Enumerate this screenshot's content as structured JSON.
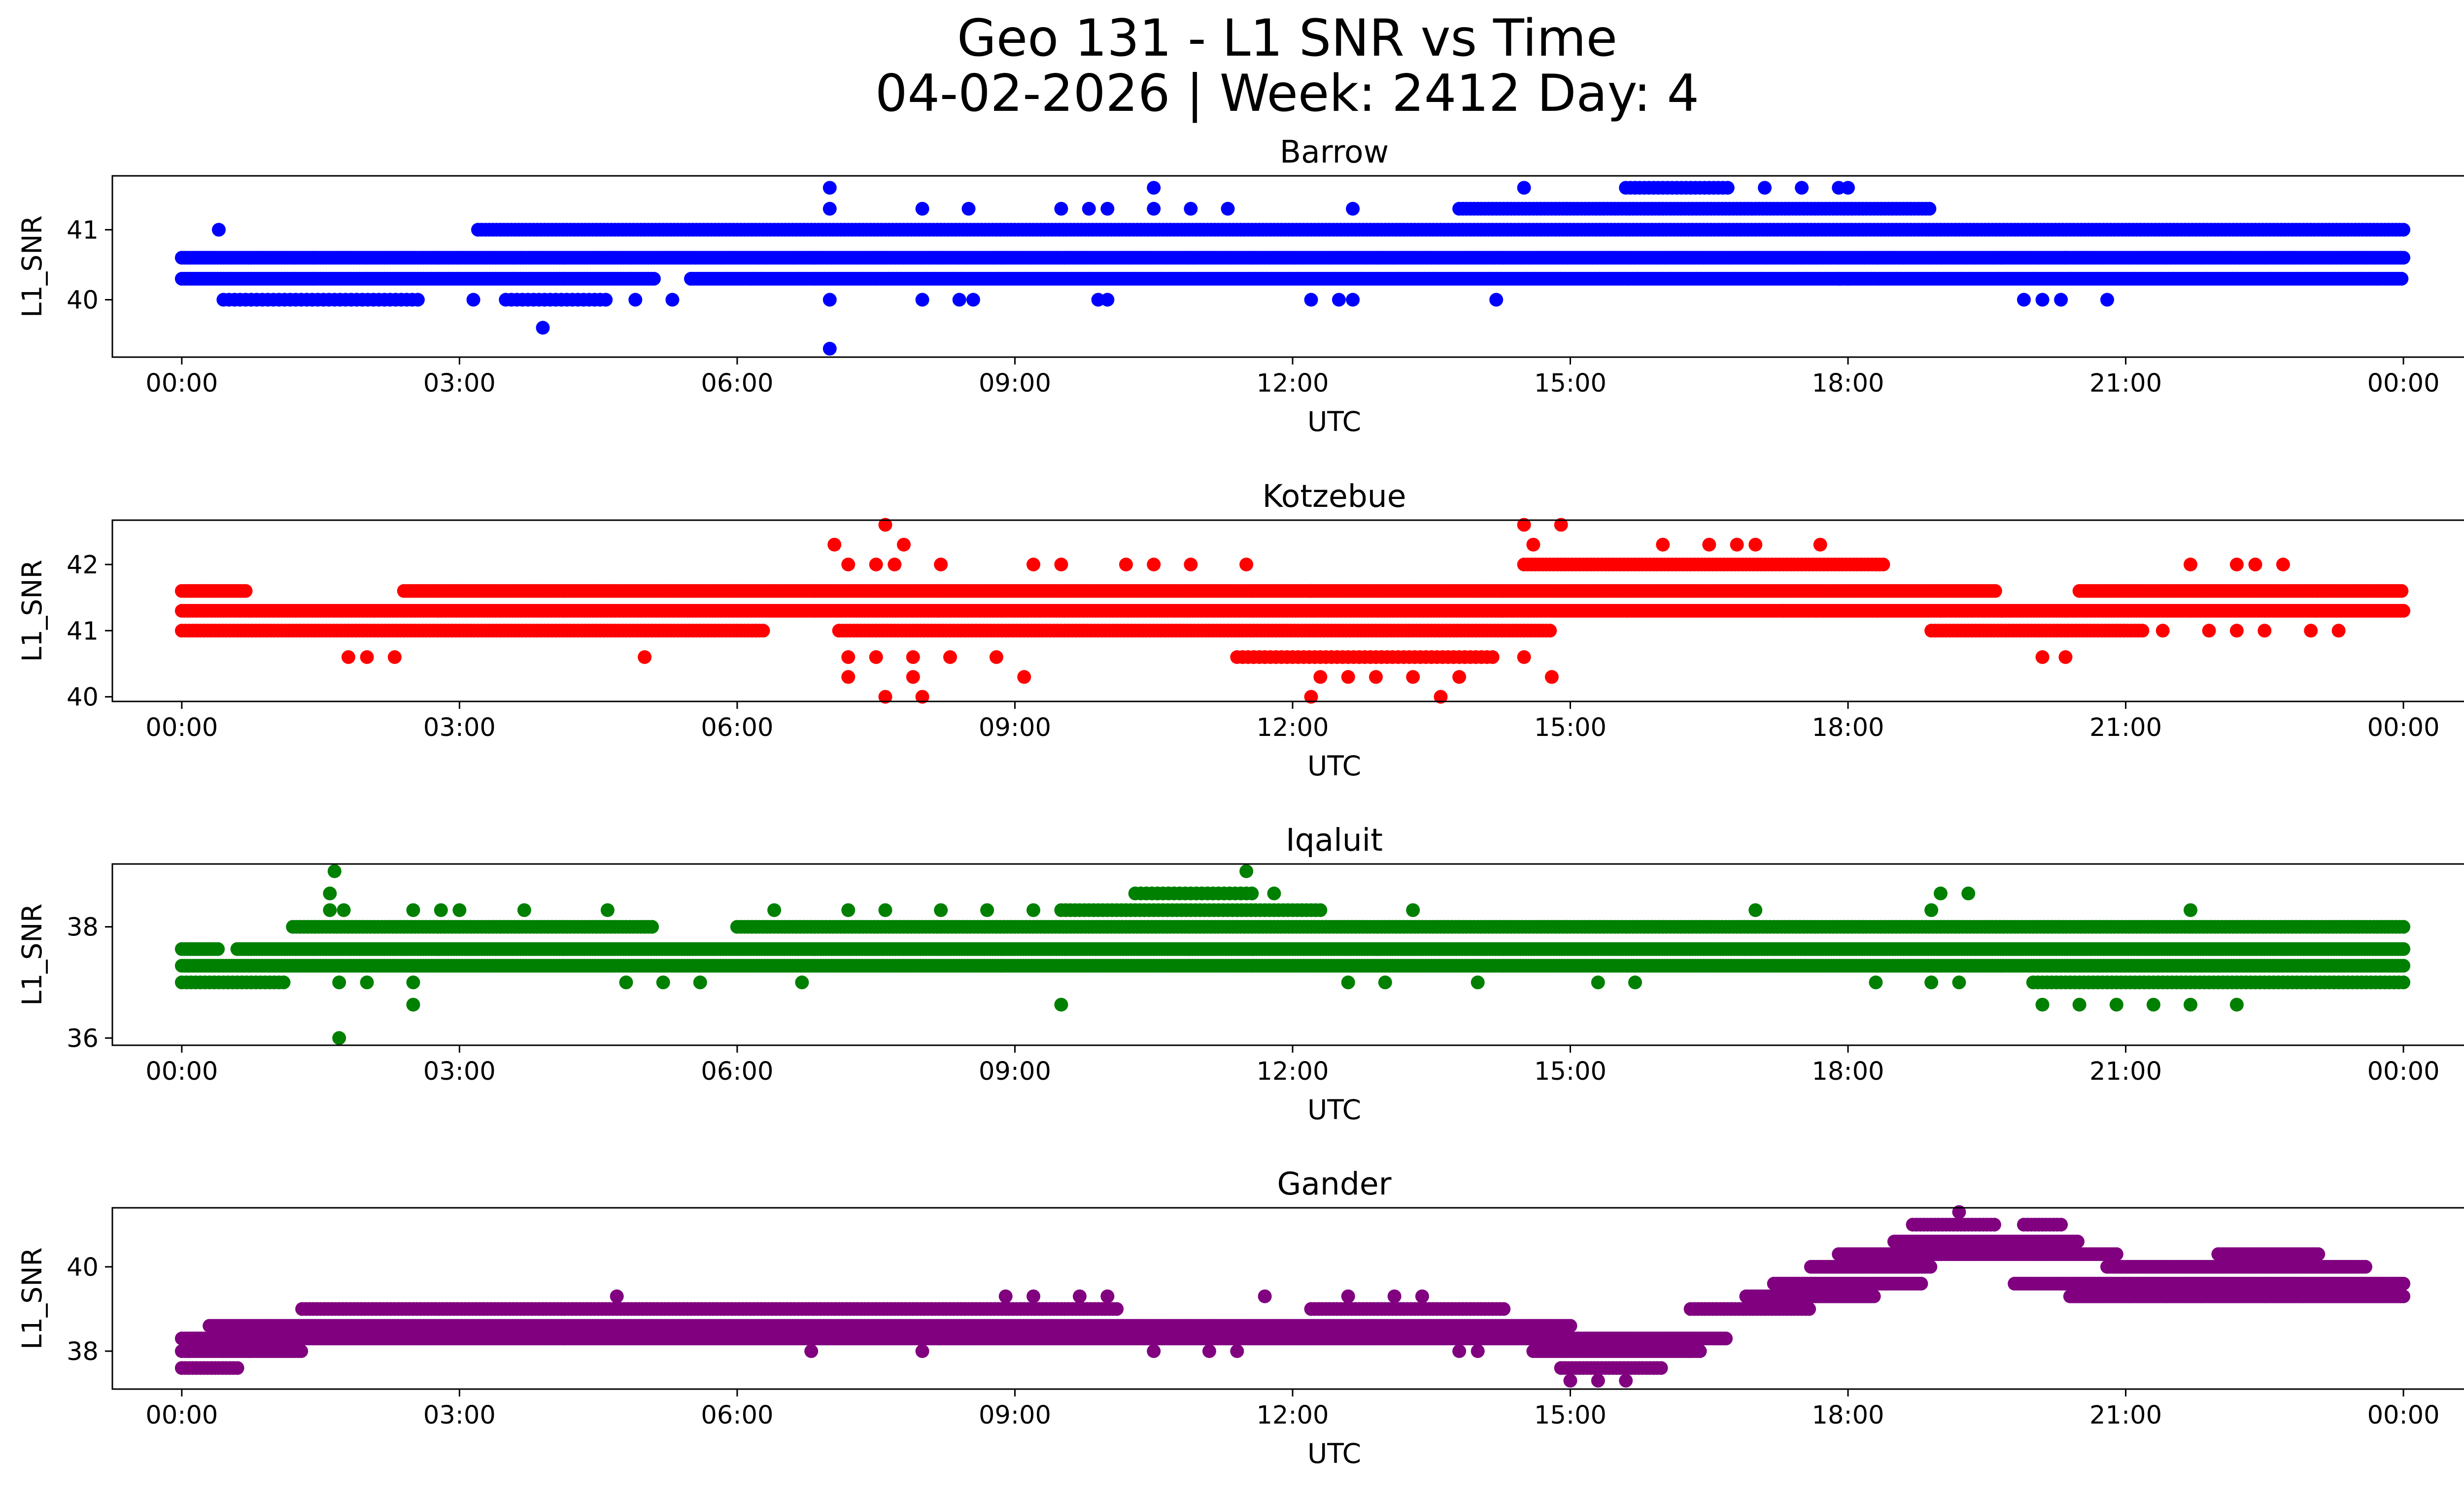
{
  "figure": {
    "title_line1": "Geo 131 - L1 SNR vs Time",
    "title_line2": "04-02-2026 | Week: 2412 Day: 4"
  },
  "chart_data": [
    {
      "type": "scatter",
      "title": "Barrow",
      "xlabel": "UTC",
      "ylabel": "L1_SNR",
      "color": "#0000ff",
      "xlim": [
        -0.75,
        25.65
      ],
      "ylim": [
        39.18,
        41.77
      ],
      "xticks": [
        "00:00",
        "03:00",
        "06:00",
        "09:00",
        "12:00",
        "15:00",
        "18:00",
        "21:00",
        "00:00"
      ],
      "yticks": [
        {
          "value": 40,
          "label": "40"
        },
        {
          "value": 41,
          "label": "41"
        }
      ],
      "levels": [
        {
          "y": 40.3,
          "segments": [
            [
              0,
              5.1
            ],
            [
              5.5,
              24
            ]
          ],
          "step": 0.03
        },
        {
          "y": 40.6,
          "segments": [
            [
              0,
              24
            ]
          ],
          "step": 0.03
        },
        {
          "y": 41.0,
          "segments": [
            [
              3.2,
              24
            ]
          ],
          "step": 0.04
        },
        {
          "y": 40.0,
          "segments": [
            [
              0.45,
              2.6
            ],
            [
              3.5,
              4.6
            ]
          ],
          "step": 0.06
        },
        {
          "y": 41.3,
          "segments": [
            [
              13.8,
              18.9
            ]
          ],
          "step": 0.04
        },
        {
          "y": 41.6,
          "segments": [
            [
              15.6,
              16.7
            ]
          ],
          "step": 0.05
        }
      ],
      "extra_points": [
        {
          "x": 0.4,
          "y": 41.0
        },
        {
          "x": 3.15,
          "y": 40.0
        },
        {
          "x": 3.9,
          "y": 39.6
        },
        {
          "x": 4.9,
          "y": 40.0
        },
        {
          "x": 5.3,
          "y": 40.0
        },
        {
          "x": 7.0,
          "y": 41.6
        },
        {
          "x": 7.0,
          "y": 41.3
        },
        {
          "x": 7.0,
          "y": 40.0
        },
        {
          "x": 7.0,
          "y": 39.3
        },
        {
          "x": 8.0,
          "y": 41.3
        },
        {
          "x": 8.5,
          "y": 41.3
        },
        {
          "x": 8.0,
          "y": 40.0
        },
        {
          "x": 8.4,
          "y": 40.0
        },
        {
          "x": 8.55,
          "y": 40.0
        },
        {
          "x": 9.5,
          "y": 41.3
        },
        {
          "x": 9.8,
          "y": 41.3
        },
        {
          "x": 10.0,
          "y": 41.3
        },
        {
          "x": 10.5,
          "y": 41.6
        },
        {
          "x": 10.5,
          "y": 41.3
        },
        {
          "x": 10.9,
          "y": 41.3
        },
        {
          "x": 11.3,
          "y": 41.3
        },
        {
          "x": 9.9,
          "y": 40.0
        },
        {
          "x": 10.0,
          "y": 40.0
        },
        {
          "x": 12.2,
          "y": 40.0
        },
        {
          "x": 12.5,
          "y": 40.0
        },
        {
          "x": 12.65,
          "y": 40.0
        },
        {
          "x": 12.65,
          "y": 41.3
        },
        {
          "x": 14.2,
          "y": 40.0
        },
        {
          "x": 14.5,
          "y": 41.6
        },
        {
          "x": 17.1,
          "y": 41.6
        },
        {
          "x": 17.5,
          "y": 41.6
        },
        {
          "x": 17.9,
          "y": 41.6
        },
        {
          "x": 18.0,
          "y": 41.6
        },
        {
          "x": 17.9,
          "y": 40.3
        },
        {
          "x": 18.0,
          "y": 40.3
        },
        {
          "x": 19.9,
          "y": 40.0
        },
        {
          "x": 20.1,
          "y": 40.0
        },
        {
          "x": 20.3,
          "y": 40.0
        },
        {
          "x": 20.8,
          "y": 40.0
        }
      ]
    },
    {
      "type": "scatter",
      "title": "Kotzebue",
      "xlabel": "UTC",
      "ylabel": "L1_SNR",
      "color": "#ff0000",
      "xlim": [
        -0.75,
        25.65
      ],
      "ylim": [
        39.93,
        42.67
      ],
      "xticks": [
        "00:00",
        "03:00",
        "06:00",
        "09:00",
        "12:00",
        "15:00",
        "18:00",
        "21:00",
        "00:00"
      ],
      "yticks": [
        {
          "value": 40,
          "label": "40"
        },
        {
          "value": 41,
          "label": "41"
        },
        {
          "value": 42,
          "label": "42"
        }
      ],
      "levels": [
        {
          "y": 41.3,
          "segments": [
            [
              0,
              24
            ]
          ],
          "step": 0.03
        },
        {
          "y": 41.6,
          "segments": [
            [
              0,
              0.7
            ],
            [
              2.4,
              19.6
            ],
            [
              20.5,
              24
            ]
          ],
          "step": 0.03
        },
        {
          "y": 41.0,
          "segments": [
            [
              0,
              6.3
            ],
            [
              7.1,
              14.8
            ],
            [
              18.9,
              21.2
            ]
          ],
          "step": 0.04
        },
        {
          "y": 42.0,
          "segments": [
            [
              14.5,
              18.4
            ]
          ],
          "step": 0.04
        },
        {
          "y": 40.6,
          "segments": [
            [
              11.4,
              14.2
            ]
          ],
          "step": 0.06
        }
      ],
      "extra_points": [
        {
          "x": 1.8,
          "y": 40.6
        },
        {
          "x": 2.0,
          "y": 40.6
        },
        {
          "x": 2.3,
          "y": 40.6
        },
        {
          "x": 5.0,
          "y": 40.6
        },
        {
          "x": 6.2,
          "y": 41.0
        },
        {
          "x": 7.05,
          "y": 42.3
        },
        {
          "x": 7.2,
          "y": 42.0
        },
        {
          "x": 7.5,
          "y": 42.0
        },
        {
          "x": 7.6,
          "y": 42.6
        },
        {
          "x": 7.8,
          "y": 42.3
        },
        {
          "x": 7.7,
          "y": 42.0
        },
        {
          "x": 8.2,
          "y": 42.0
        },
        {
          "x": 7.2,
          "y": 40.6
        },
        {
          "x": 7.2,
          "y": 40.3
        },
        {
          "x": 7.5,
          "y": 40.6
        },
        {
          "x": 7.6,
          "y": 40.0
        },
        {
          "x": 7.9,
          "y": 40.6
        },
        {
          "x": 7.9,
          "y": 40.3
        },
        {
          "x": 8.0,
          "y": 40.0
        },
        {
          "x": 8.3,
          "y": 40.6
        },
        {
          "x": 8.8,
          "y": 40.6
        },
        {
          "x": 9.1,
          "y": 40.3
        },
        {
          "x": 9.2,
          "y": 42.0
        },
        {
          "x": 9.5,
          "y": 42.0
        },
        {
          "x": 10.2,
          "y": 42.0
        },
        {
          "x": 10.5,
          "y": 42.0
        },
        {
          "x": 10.9,
          "y": 42.0
        },
        {
          "x": 11.5,
          "y": 42.0
        },
        {
          "x": 12.2,
          "y": 41.6
        },
        {
          "x": 12.2,
          "y": 40.0
        },
        {
          "x": 12.3,
          "y": 40.3
        },
        {
          "x": 12.6,
          "y": 40.3
        },
        {
          "x": 12.9,
          "y": 40.3
        },
        {
          "x": 13.3,
          "y": 40.3
        },
        {
          "x": 13.6,
          "y": 40.0
        },
        {
          "x": 13.8,
          "y": 40.3
        },
        {
          "x": 14.5,
          "y": 42.6
        },
        {
          "x": 14.6,
          "y": 42.3
        },
        {
          "x": 14.8,
          "y": 40.3
        },
        {
          "x": 14.9,
          "y": 42.6
        },
        {
          "x": 14.5,
          "y": 40.6
        },
        {
          "x": 16.0,
          "y": 42.3
        },
        {
          "x": 16.5,
          "y": 42.3
        },
        {
          "x": 16.8,
          "y": 42.3
        },
        {
          "x": 17.0,
          "y": 42.3
        },
        {
          "x": 17.7,
          "y": 42.3
        },
        {
          "x": 20.1,
          "y": 40.6
        },
        {
          "x": 20.35,
          "y": 40.6
        },
        {
          "x": 21.7,
          "y": 42.0
        },
        {
          "x": 22.2,
          "y": 42.0
        },
        {
          "x": 22.4,
          "y": 42.0
        },
        {
          "x": 22.7,
          "y": 42.0
        },
        {
          "x": 21.4,
          "y": 41.0
        },
        {
          "x": 21.9,
          "y": 41.0
        },
        {
          "x": 22.2,
          "y": 41.0
        },
        {
          "x": 22.5,
          "y": 41.0
        },
        {
          "x": 23.0,
          "y": 41.0
        },
        {
          "x": 23.3,
          "y": 41.0
        },
        {
          "x": 17.3,
          "y": 41.3
        }
      ]
    },
    {
      "type": "scatter",
      "title": "Iqaluit",
      "xlabel": "UTC",
      "ylabel": "L1_SNR",
      "color": "#008000",
      "xlim": [
        -0.75,
        25.65
      ],
      "ylim": [
        35.87,
        39.13
      ],
      "xticks": [
        "00:00",
        "03:00",
        "06:00",
        "09:00",
        "12:00",
        "15:00",
        "18:00",
        "21:00",
        "00:00"
      ],
      "yticks": [
        {
          "value": 36,
          "label": "36"
        },
        {
          "value": 38,
          "label": "38"
        }
      ],
      "levels": [
        {
          "y": 37.3,
          "segments": [
            [
              0,
              24
            ]
          ],
          "step": 0.03
        },
        {
          "y": 37.6,
          "segments": [
            [
              0,
              0.4
            ],
            [
              0.6,
              24
            ]
          ],
          "step": 0.03
        },
        {
          "y": 38.0,
          "segments": [
            [
              1.2,
              5.1
            ],
            [
              6.0,
              24
            ]
          ],
          "step": 0.04
        },
        {
          "y": 37.0,
          "segments": [
            [
              0,
              1.1
            ],
            [
              20.0,
              24
            ]
          ],
          "step": 0.05
        },
        {
          "y": 38.3,
          "segments": [
            [
              9.5,
              12.3
            ]
          ],
          "step": 0.05
        },
        {
          "y": 38.6,
          "segments": [
            [
              10.3,
              11.6
            ]
          ],
          "step": 0.06
        }
      ],
      "extra_points": [
        {
          "x": 1.65,
          "y": 39.0
        },
        {
          "x": 1.6,
          "y": 38.6
        },
        {
          "x": 1.6,
          "y": 38.3
        },
        {
          "x": 1.75,
          "y": 38.3
        },
        {
          "x": 1.7,
          "y": 37.0
        },
        {
          "x": 1.7,
          "y": 36.0
        },
        {
          "x": 2.0,
          "y": 37.0
        },
        {
          "x": 2.5,
          "y": 38.3
        },
        {
          "x": 2.5,
          "y": 37.0
        },
        {
          "x": 2.5,
          "y": 36.6
        },
        {
          "x": 2.8,
          "y": 38.3
        },
        {
          "x": 3.0,
          "y": 38.3
        },
        {
          "x": 3.7,
          "y": 38.3
        },
        {
          "x": 4.6,
          "y": 38.3
        },
        {
          "x": 4.8,
          "y": 37.0
        },
        {
          "x": 5.2,
          "y": 37.0
        },
        {
          "x": 5.6,
          "y": 37.0
        },
        {
          "x": 6.4,
          "y": 38.3
        },
        {
          "x": 6.7,
          "y": 37.0
        },
        {
          "x": 7.2,
          "y": 38.3
        },
        {
          "x": 7.6,
          "y": 38.3
        },
        {
          "x": 8.2,
          "y": 38.3
        },
        {
          "x": 8.7,
          "y": 38.3
        },
        {
          "x": 9.2,
          "y": 38.3
        },
        {
          "x": 9.5,
          "y": 36.6
        },
        {
          "x": 11.5,
          "y": 39.0
        },
        {
          "x": 11.8,
          "y": 38.6
        },
        {
          "x": 13.3,
          "y": 38.3
        },
        {
          "x": 12.6,
          "y": 37.0
        },
        {
          "x": 13.0,
          "y": 37.0
        },
        {
          "x": 14.0,
          "y": 37.0
        },
        {
          "x": 15.3,
          "y": 37.0
        },
        {
          "x": 15.7,
          "y": 37.0
        },
        {
          "x": 17.0,
          "y": 38.3
        },
        {
          "x": 19.0,
          "y": 38.6
        },
        {
          "x": 19.3,
          "y": 38.6
        },
        {
          "x": 18.9,
          "y": 38.3
        },
        {
          "x": 18.3,
          "y": 37.0
        },
        {
          "x": 18.9,
          "y": 37.0
        },
        {
          "x": 19.2,
          "y": 37.0
        },
        {
          "x": 20.1,
          "y": 36.6
        },
        {
          "x": 20.5,
          "y": 36.6
        },
        {
          "x": 20.9,
          "y": 36.6
        },
        {
          "x": 21.3,
          "y": 36.6
        },
        {
          "x": 21.7,
          "y": 36.6
        },
        {
          "x": 22.2,
          "y": 36.6
        },
        {
          "x": 21.7,
          "y": 38.3
        }
      ]
    },
    {
      "type": "scatter",
      "title": "Gander",
      "xlabel": "UTC",
      "ylabel": "L1_SNR",
      "color": "#800080",
      "xlim": [
        -0.75,
        25.65
      ],
      "ylim": [
        37.1,
        41.4
      ],
      "xticks": [
        "00:00",
        "03:00",
        "06:00",
        "09:00",
        "12:00",
        "15:00",
        "18:00",
        "21:00",
        "00:00"
      ],
      "yticks": [
        {
          "value": 38,
          "label": "38"
        },
        {
          "value": 40,
          "label": "40"
        }
      ],
      "levels": [
        {
          "y": 37.6,
          "segments": [
            [
              0,
              0.6
            ],
            [
              14.9,
              16.0
            ]
          ],
          "step": 0.04
        },
        {
          "y": 38.0,
          "segments": [
            [
              0,
              1.3
            ],
            [
              14.6,
              16.4
            ]
          ],
          "step": 0.03
        },
        {
          "y": 38.3,
          "segments": [
            [
              0,
              16.7
            ]
          ],
          "step": 0.03
        },
        {
          "y": 38.6,
          "segments": [
            [
              0.3,
              15.0
            ]
          ],
          "step": 0.03
        },
        {
          "y": 39.0,
          "segments": [
            [
              1.3,
              10.1
            ],
            [
              12.2,
              14.3
            ],
            [
              16.3,
              17.6
            ]
          ],
          "step": 0.04
        },
        {
          "y": 39.3,
          "segments": [
            [
              16.9,
              18.3
            ],
            [
              20.4,
              24
            ]
          ],
          "step": 0.03
        },
        {
          "y": 39.6,
          "segments": [
            [
              17.2,
              18.8
            ],
            [
              19.8,
              24
            ]
          ],
          "step": 0.03
        },
        {
          "y": 40.0,
          "segments": [
            [
              17.6,
              18.9
            ],
            [
              20.8,
              23.6
            ]
          ],
          "step": 0.03
        },
        {
          "y": 40.3,
          "segments": [
            [
              17.9,
              20.9
            ],
            [
              22.0,
              23.1
            ]
          ],
          "step": 0.03
        },
        {
          "y": 40.6,
          "segments": [
            [
              18.5,
              20.5
            ]
          ],
          "step": 0.03
        },
        {
          "y": 41.0,
          "segments": [
            [
              18.7,
              19.6
            ],
            [
              19.9,
              20.3
            ]
          ],
          "step": 0.04
        }
      ],
      "extra_points": [
        {
          "x": 4.7,
          "y": 39.3
        },
        {
          "x": 8.9,
          "y": 39.3
        },
        {
          "x": 9.2,
          "y": 39.3
        },
        {
          "x": 9.7,
          "y": 39.3
        },
        {
          "x": 10.0,
          "y": 39.3
        },
        {
          "x": 11.7,
          "y": 39.3
        },
        {
          "x": 12.6,
          "y": 39.3
        },
        {
          "x": 13.1,
          "y": 39.3
        },
        {
          "x": 13.4,
          "y": 39.3
        },
        {
          "x": 11.1,
          "y": 38.0
        },
        {
          "x": 11.4,
          "y": 38.0
        },
        {
          "x": 13.8,
          "y": 38.0
        },
        {
          "x": 14.0,
          "y": 38.0
        },
        {
          "x": 15.0,
          "y": 37.3
        },
        {
          "x": 15.3,
          "y": 37.3
        },
        {
          "x": 15.6,
          "y": 37.3
        },
        {
          "x": 19.2,
          "y": 41.3
        },
        {
          "x": 8.0,
          "y": 38.0
        },
        {
          "x": 6.8,
          "y": 38.0
        },
        {
          "x": 10.5,
          "y": 38.0
        }
      ]
    }
  ]
}
